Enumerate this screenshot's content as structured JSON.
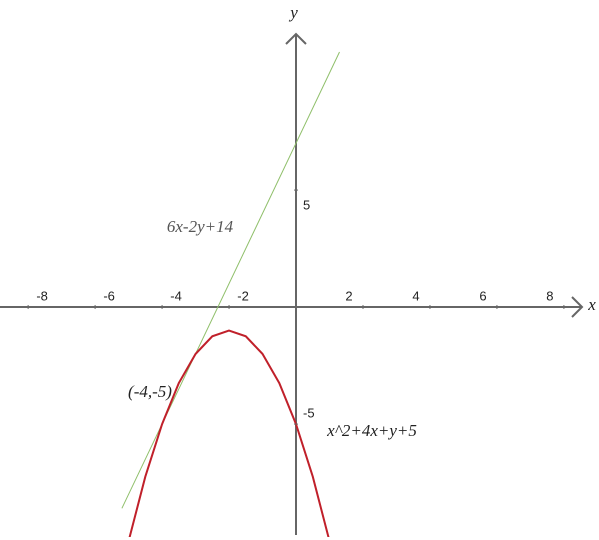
{
  "chart_data": {
    "type": "function-plot",
    "x_label": "x",
    "y_label": "y",
    "xlim": [
      -8.84,
      8.63
    ],
    "ylim": [
      -9.74,
      11.84
    ],
    "xticks": [
      -8,
      -6,
      -4,
      -2,
      2,
      4,
      6,
      8
    ],
    "yticks": [
      5,
      -5
    ],
    "series": [
      {
        "name": "6x-2y+14",
        "color": "#8fbf6a",
        "x": [
          -5.2,
          1.3
        ],
        "values": [
          -8.6,
          10.9
        ]
      },
      {
        "name": "x^2+4x+y+5",
        "color": "#c0202a",
        "x": [
          -5,
          -4.5,
          -4,
          -3.5,
          -3,
          -2.5,
          -2,
          -1.5,
          -1,
          -0.5,
          0,
          0.5,
          1
        ],
        "values": [
          -10,
          -7.25,
          -5,
          -3.25,
          -2,
          -1.25,
          -1,
          -1.25,
          -2,
          -3.25,
          -5,
          -7.25,
          -10
        ]
      }
    ],
    "annotations": [
      "(-4,-5)"
    ]
  }
}
